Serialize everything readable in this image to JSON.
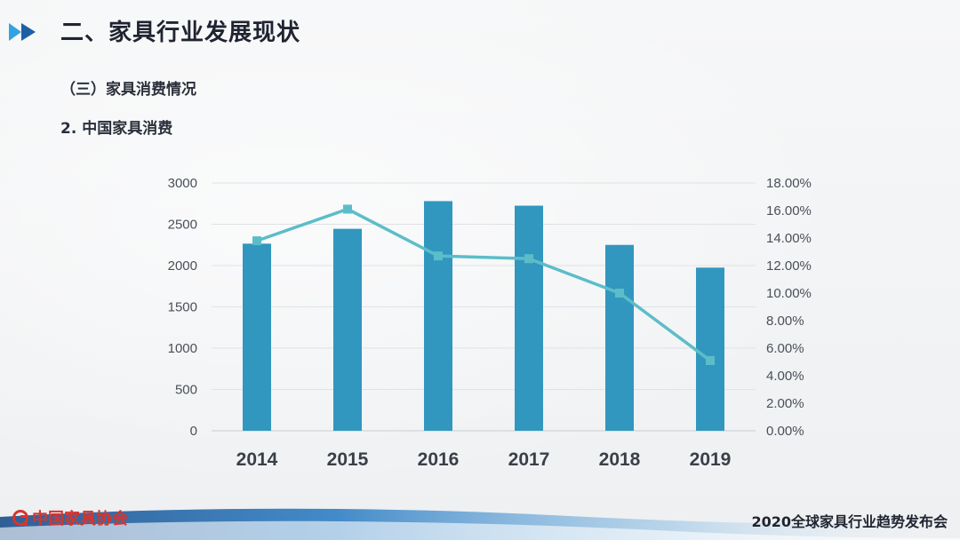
{
  "header": {
    "title": "二、家具行业发展现状",
    "section": "（三）家具消费情况",
    "subsection": "2. 中国家具消费"
  },
  "colors": {
    "bar": "#3297be",
    "line": "#5cbdc9",
    "accent_dark": "#1f5fa6",
    "accent_light": "#33a3e0",
    "logo_red": "#d9342b"
  },
  "icons": {
    "title_marker": "double-play-arrow-icon",
    "logo": "association-logo-icon"
  },
  "chart_data": {
    "type": "bar",
    "categories": [
      "2014",
      "2015",
      "2016",
      "2017",
      "2018",
      "2019"
    ],
    "series": [
      {
        "type": "bar",
        "axis": "left",
        "values": [
          2265,
          2445,
          2780,
          2725,
          2250,
          1975
        ]
      },
      {
        "type": "line",
        "axis": "right",
        "values": [
          13.8,
          16.1,
          12.7,
          12.5,
          10.0,
          5.1
        ]
      }
    ],
    "ylim_left": [
      0,
      3000
    ],
    "yticks_left": [
      "0",
      "500",
      "1000",
      "1500",
      "2000",
      "2500",
      "3000"
    ],
    "ylim_right": [
      0,
      18
    ],
    "yticks_right": [
      "0.00%",
      "2.00%",
      "4.00%",
      "6.00%",
      "8.00%",
      "10.00%",
      "12.00%",
      "14.00%",
      "16.00%",
      "18.00%"
    ],
    "grid": true
  },
  "footer": {
    "logo_text": "中国家具协会",
    "event": "2020全球家具行业趋势发布会"
  }
}
